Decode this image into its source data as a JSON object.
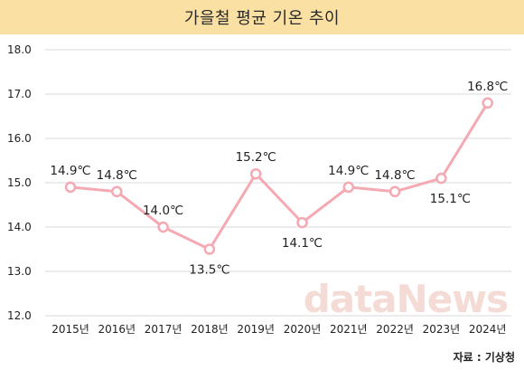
{
  "title": "가을철 평균 기온 추이",
  "source": "자료 : 기상청",
  "watermark": "dataNews",
  "colors": {
    "title_bg": "#fbe0a3",
    "line": "#f4a9b3",
    "marker_fill": "#ffffff",
    "grid": "#d9d9d9"
  },
  "chart_data": {
    "type": "line",
    "title": "가을철 평균 기온 추이",
    "xlabel": "",
    "ylabel": "",
    "categories": [
      "2015년",
      "2016년",
      "2017년",
      "2018년",
      "2019년",
      "2020년",
      "2021년",
      "2022년",
      "2023년",
      "2024년"
    ],
    "series": [
      {
        "values": [
          14.9,
          14.8,
          14.0,
          13.5,
          15.2,
          14.1,
          14.9,
          14.8,
          15.1,
          16.8
        ]
      }
    ],
    "data_labels": [
      "14.9℃",
      "14.8℃",
      "14.0℃",
      "13.5℃",
      "15.2℃",
      "14.1℃",
      "14.9℃",
      "14.8℃",
      "15.1℃",
      "16.8℃"
    ],
    "ylim": [
      12.0,
      18.0
    ],
    "yticks": [
      "12.0",
      "13.0",
      "14.0",
      "15.0",
      "16.0",
      "17.0",
      "18.0"
    ],
    "grid": true,
    "legend": "none"
  }
}
